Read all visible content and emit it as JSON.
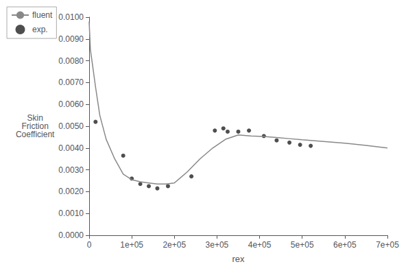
{
  "chart_data": {
    "type": "line",
    "xlabel": "rex",
    "ylabel": "Skin\nFriction\nCoefficient",
    "xlim": [
      0,
      700000
    ],
    "ylim": [
      0,
      0.01
    ],
    "xticks": [
      0,
      {
        "value": 100000,
        "label": "1e+05"
      },
      {
        "value": 200000,
        "label": "2e+05"
      },
      {
        "value": 300000,
        "label": "3e+05"
      },
      {
        "value": 400000,
        "label": "4e+05"
      },
      {
        "value": 500000,
        "label": "5e+05"
      },
      {
        "value": 600000,
        "label": "6e+05"
      },
      {
        "value": 700000,
        "label": "7e+05"
      }
    ],
    "yticks": [
      {
        "value": 0,
        "label": "0.0000"
      },
      {
        "value": 0.001,
        "label": "0.0010"
      },
      {
        "value": 0.002,
        "label": "0.0020"
      },
      {
        "value": 0.003,
        "label": "0.0030"
      },
      {
        "value": 0.004,
        "label": "0.0040"
      },
      {
        "value": 0.005,
        "label": "0.0050"
      },
      {
        "value": 0.006,
        "label": "0.0060"
      },
      {
        "value": 0.007,
        "label": "0.0070"
      },
      {
        "value": 0.008,
        "label": "0.0080"
      },
      {
        "value": 0.009,
        "label": "0.0090"
      },
      {
        "value": 0.01,
        "label": "0.0100"
      }
    ],
    "grid": false,
    "legend": "upper left",
    "series": [
      {
        "name": "fluent",
        "type": "line",
        "color": "#888888",
        "x": [
          0,
          3000,
          8000,
          15000,
          25000,
          40000,
          60000,
          80000,
          100000,
          120000,
          140000,
          160000,
          180000,
          200000,
          230000,
          260000,
          290000,
          320000,
          350000,
          380000,
          410000,
          440000,
          470000,
          500000,
          550000,
          600000,
          650000,
          700000
        ],
        "values": [
          0.0098,
          0.0085,
          0.0078,
          0.0068,
          0.0055,
          0.0044,
          0.0035,
          0.0028,
          0.00255,
          0.00245,
          0.0024,
          0.00235,
          0.00235,
          0.0024,
          0.0029,
          0.0035,
          0.004,
          0.0044,
          0.0046,
          0.00455,
          0.00453,
          0.00448,
          0.00443,
          0.00438,
          0.0043,
          0.00422,
          0.00412,
          0.004
        ]
      },
      {
        "name": "exp.",
        "type": "scatter",
        "color": "#222222",
        "x": [
          15000,
          80000,
          100000,
          120000,
          140000,
          160000,
          185000,
          240000,
          295000,
          315000,
          325000,
          350000,
          375000,
          410000,
          440000,
          470000,
          495000,
          520000
        ],
        "values": [
          0.0052,
          0.00365,
          0.0026,
          0.00235,
          0.00225,
          0.00215,
          0.00225,
          0.0027,
          0.0048,
          0.0049,
          0.00475,
          0.00475,
          0.0048,
          0.00455,
          0.00435,
          0.00425,
          0.00415,
          0.0041
        ]
      }
    ]
  }
}
